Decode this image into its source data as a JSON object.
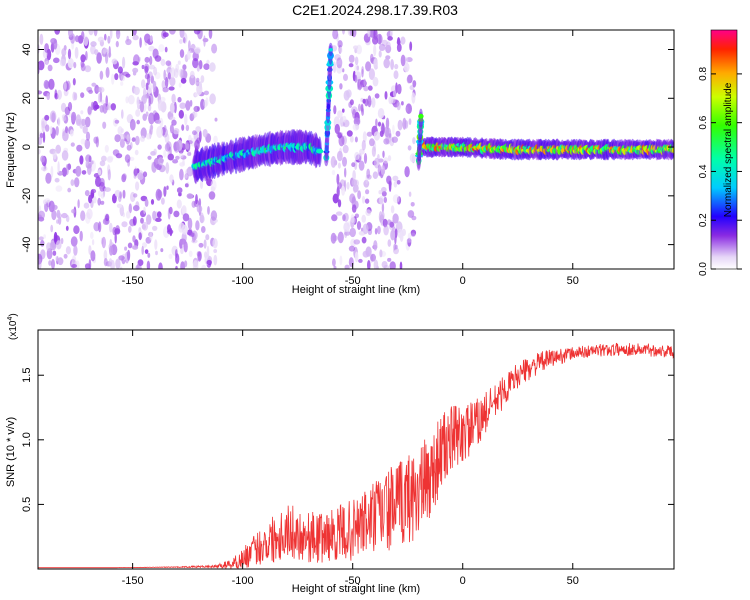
{
  "title": "C2E1.2024.298.17.39.R03",
  "chart_data": [
    {
      "type": "heatmap",
      "xlabel": "Height of straight line (km)",
      "ylabel": "Frequency (Hz)",
      "xlim": [
        -193,
        96
      ],
      "ylim": [
        -50,
        48
      ],
      "xticks": [
        -150,
        -100,
        -50,
        0,
        50
      ],
      "yticks": [
        -40,
        -20,
        0,
        20,
        40
      ],
      "colorbar": {
        "label": "Normalized spectral amplitude",
        "range": [
          0,
          0.98
        ],
        "ticks": [
          0.0,
          0.2,
          0.4,
          0.6,
          0.8
        ],
        "tick_labels": [
          "0.0",
          "0.2",
          "0.4",
          "0.6",
          "0.8"
        ]
      },
      "noise_regions": [
        {
          "x": [
            -193,
            -112
          ],
          "y": [
            -50,
            48
          ],
          "amplitude": 0.12
        },
        {
          "x": [
            -59,
            -22
          ],
          "y": [
            -50,
            48
          ],
          "amplitude": 0.12
        }
      ],
      "signal_tracks": [
        {
          "x": [
            -122,
            -110,
            -100,
            -90,
            -80,
            -70,
            -65
          ],
          "y": [
            -8,
            -5,
            -3,
            -1,
            0,
            0,
            -2
          ],
          "amplitude": 0.35,
          "width_hz": 5
        },
        {
          "x": [
            -19,
            -10,
            0,
            20,
            40,
            60,
            80,
            96
          ],
          "y": [
            0,
            0,
            0,
            -1,
            -1,
            -1,
            -1,
            -1
          ],
          "amplitude": 0.6,
          "width_hz": 3
        },
        {
          "x": [
            -62,
            -60
          ],
          "y": [
            -5,
            40
          ],
          "amplitude": 0.3,
          "width_hz": 3
        },
        {
          "x": [
            -20,
            -19
          ],
          "y": [
            -6,
            12
          ],
          "amplitude": 0.45,
          "width_hz": 3
        }
      ]
    },
    {
      "type": "line",
      "xlabel": "Height of straight line (km)",
      "ylabel": "SNR (10 * v/v)",
      "y_multiplier": "(x10",
      "y_multiplier_exp": "4",
      "y_multiplier_close": ")",
      "xlim": [
        -193,
        96
      ],
      "ylim": [
        0,
        1.85
      ],
      "xticks": [
        -150,
        -100,
        -50,
        0,
        50
      ],
      "yticks": [
        0.5,
        1.0,
        1.5
      ],
      "ytick_labels": [
        "0.5",
        "1.0",
        "1.5"
      ],
      "series": [
        {
          "color": "#ee3333",
          "x": [
            -193,
            -160,
            -130,
            -112,
            -105,
            -100,
            -95,
            -90,
            -85,
            -80,
            -75,
            -70,
            -65,
            -60,
            -55,
            -50,
            -45,
            -40,
            -35,
            -30,
            -25,
            -20,
            -15,
            -10,
            -5,
            0,
            5,
            10,
            15,
            20,
            25,
            30,
            35,
            40,
            45,
            50,
            55,
            60,
            70,
            80,
            90,
            96
          ],
          "y": [
            0.01,
            0.01,
            0.015,
            0.02,
            0.04,
            0.08,
            0.14,
            0.2,
            0.25,
            0.3,
            0.27,
            0.25,
            0.24,
            0.26,
            0.28,
            0.3,
            0.35,
            0.4,
            0.45,
            0.48,
            0.55,
            0.6,
            0.7,
            0.9,
            1.0,
            1.05,
            1.1,
            1.2,
            1.3,
            1.4,
            1.5,
            1.55,
            1.6,
            1.63,
            1.65,
            1.67,
            1.68,
            1.69,
            1.7,
            1.7,
            1.69,
            1.68
          ],
          "jitter": [
            0.0,
            0.0,
            0.003,
            0.01,
            0.04,
            0.08,
            0.12,
            0.16,
            0.2,
            0.22,
            0.2,
            0.2,
            0.2,
            0.2,
            0.22,
            0.24,
            0.26,
            0.3,
            0.32,
            0.34,
            0.36,
            0.36,
            0.34,
            0.3,
            0.27,
            0.24,
            0.2,
            0.17,
            0.14,
            0.12,
            0.1,
            0.09,
            0.08,
            0.07,
            0.06,
            0.05,
            0.05,
            0.05,
            0.05,
            0.05,
            0.05,
            0.05
          ]
        }
      ]
    }
  ]
}
